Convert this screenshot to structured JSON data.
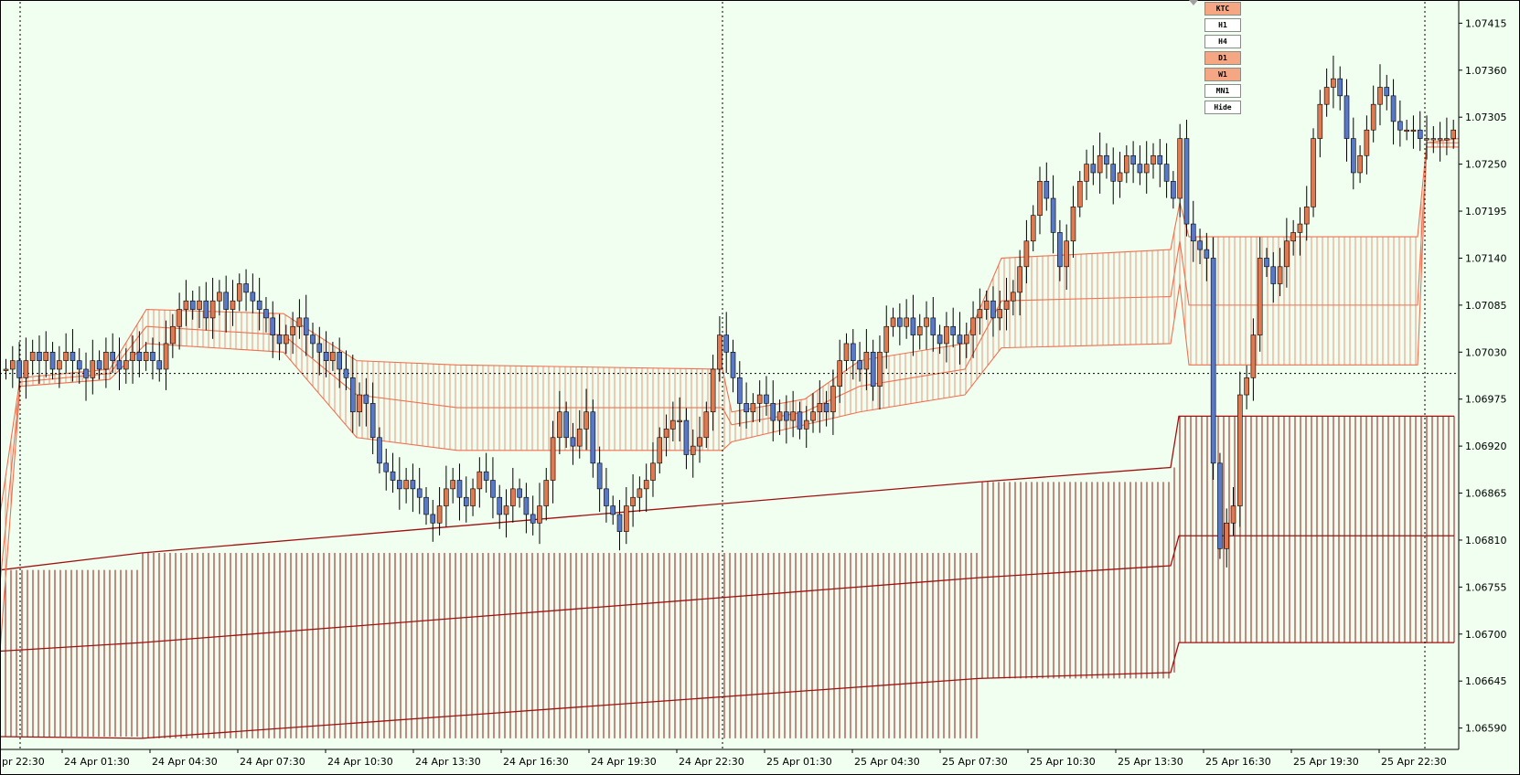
{
  "chart_data": {
    "type": "candlestick",
    "symbol": "",
    "ylim": [
      1.06565,
      1.0744
    ],
    "price_ticks": [
      "1.07415",
      "1.07360",
      "1.07305",
      "1.07250",
      "1.07195",
      "1.07140",
      "1.07085",
      "1.07030",
      "1.06975",
      "1.06920",
      "1.06865",
      "1.06810",
      "1.06755",
      "1.06700",
      "1.06645",
      "1.06590"
    ],
    "time_labels": [
      "pr 22:30",
      "24 Apr 01:30",
      "24 Apr 04:30",
      "24 Apr 07:30",
      "24 Apr 10:30",
      "24 Apr 13:30",
      "24 Apr 16:30",
      "24 Apr 19:30",
      "24 Apr 22:30",
      "25 Apr 01:30",
      "25 Apr 04:30",
      "25 Apr 07:30",
      "25 Apr 10:30",
      "25 Apr 13:30",
      "25 Apr 16:30",
      "25 Apr 19:30",
      "25 Apr 22:30"
    ],
    "crosshair_price": 1.07005,
    "grid": false,
    "colors": {
      "bull": "#e07850",
      "bear": "#5a78c8",
      "wick": "#000000",
      "small_band": "#f07050",
      "large_band": "#a01010",
      "background": "#f0fff0"
    },
    "closes": [
      1.0701,
      1.0702,
      1.07,
      1.0702,
      1.0703,
      1.0702,
      1.0703,
      1.0701,
      1.0702,
      1.0703,
      1.0702,
      1.0701,
      1.07,
      1.0702,
      1.0701,
      1.0703,
      1.0702,
      1.0701,
      1.0702,
      1.0703,
      1.0702,
      1.0703,
      1.0702,
      1.0701,
      1.0704,
      1.0706,
      1.0708,
      1.0709,
      1.0708,
      1.0709,
      1.0707,
      1.0709,
      1.071,
      1.0708,
      1.0709,
      1.0711,
      1.071,
      1.0709,
      1.0708,
      1.0707,
      1.0705,
      1.0704,
      1.0705,
      1.0706,
      1.0707,
      1.0705,
      1.0704,
      1.0703,
      1.0702,
      1.0703,
      1.0701,
      1.07,
      1.0696,
      1.0698,
      1.0697,
      1.0693,
      1.069,
      1.0689,
      1.0688,
      1.0687,
      1.0688,
      1.0687,
      1.0686,
      1.0684,
      1.0683,
      1.0685,
      1.0687,
      1.0688,
      1.0686,
      1.0685,
      1.0687,
      1.0689,
      1.0688,
      1.0686,
      1.0684,
      1.0685,
      1.0687,
      1.0686,
      1.0684,
      1.0683,
      1.0685,
      1.0688,
      1.0693,
      1.0696,
      1.0693,
      1.0692,
      1.0694,
      1.0696,
      1.069,
      1.0687,
      1.0685,
      1.0684,
      1.0682,
      1.0685,
      1.0686,
      1.0687,
      1.0688,
      1.069,
      1.0693,
      1.0694,
      1.0695,
      1.0695,
      1.0691,
      1.0692,
      1.0693,
      1.0696,
      1.0701,
      1.0705,
      1.0703,
      1.07,
      1.0697,
      1.0696,
      1.0697,
      1.0698,
      1.0697,
      1.0695,
      1.0696,
      1.0695,
      1.0696,
      1.0694,
      1.0695,
      1.0696,
      1.0697,
      1.0696,
      1.0699,
      1.0702,
      1.0704,
      1.0702,
      1.0701,
      1.0703,
      1.0699,
      1.0703,
      1.0706,
      1.0707,
      1.0706,
      1.0707,
      1.0705,
      1.0706,
      1.0707,
      1.0705,
      1.0704,
      1.0706,
      1.0705,
      1.0704,
      1.0705,
      1.0707,
      1.0708,
      1.0709,
      1.0707,
      1.0708,
      1.0709,
      1.071,
      1.0713,
      1.0716,
      1.0719,
      1.0723,
      1.0721,
      1.0717,
      1.0713,
      1.0716,
      1.072,
      1.0723,
      1.0725,
      1.0724,
      1.0726,
      1.0725,
      1.0723,
      1.0724,
      1.0726,
      1.0725,
      1.0724,
      1.0725,
      1.0726,
      1.0725,
      1.0723,
      1.0721,
      1.0728,
      1.0718,
      1.0716,
      1.0715,
      1.0714,
      1.069,
      1.068,
      1.0683,
      1.0685,
      1.0698,
      1.07,
      1.0705,
      1.0714,
      1.0713,
      1.0711,
      1.0713,
      1.0716,
      1.0717,
      1.0718,
      1.072,
      1.0728,
      1.0732,
      1.0734,
      1.0735,
      1.0733,
      1.0728,
      1.0724,
      1.0726,
      1.0729,
      1.0732,
      1.0734,
      1.0733,
      1.073,
      1.0729,
      1.0729,
      1.0729,
      1.0728,
      1.0728,
      1.0728,
      1.0728,
      1.0728,
      1.0729
    ]
  },
  "timeframe_buttons": [
    {
      "label": "KTC",
      "active": true
    },
    {
      "label": "H1",
      "active": false
    },
    {
      "label": "H4",
      "active": false
    },
    {
      "label": "D1",
      "active": true
    },
    {
      "label": "W1",
      "active": true
    },
    {
      "label": "MN1",
      "active": false
    },
    {
      "label": "Hide",
      "active": false
    }
  ]
}
